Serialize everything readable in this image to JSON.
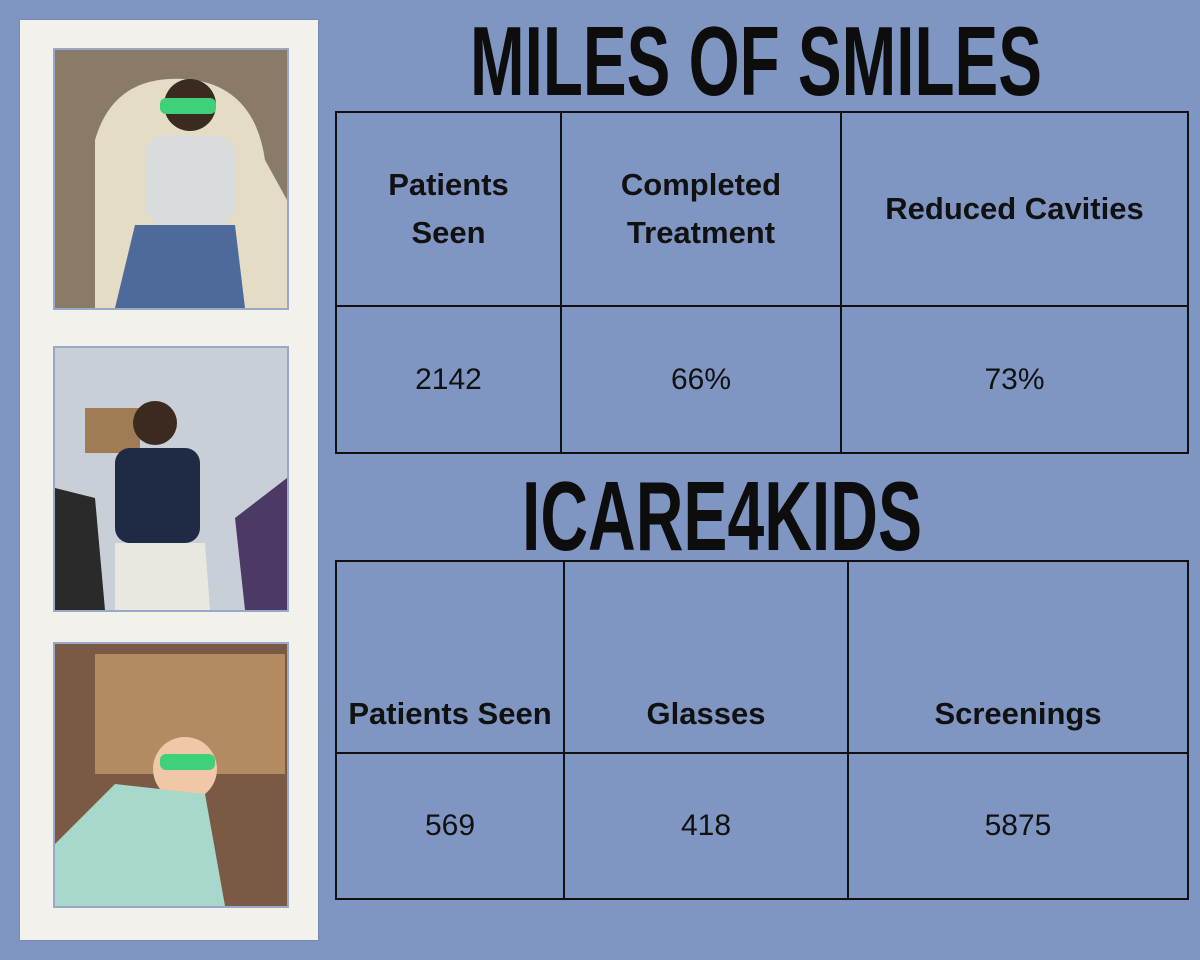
{
  "sections": [
    {
      "title": "MILES OF SMILES",
      "table": {
        "headers": [
          "Patients Seen",
          "Completed Treatment",
          "Reduced Cavities"
        ],
        "values": [
          "2142",
          "66%",
          "73%"
        ]
      }
    },
    {
      "title": "ICARE4KIDS",
      "table": {
        "headers": [
          "Patients Seen",
          "Glasses",
          "Screenings"
        ],
        "values": [
          "569",
          "418",
          "5875"
        ]
      }
    }
  ]
}
